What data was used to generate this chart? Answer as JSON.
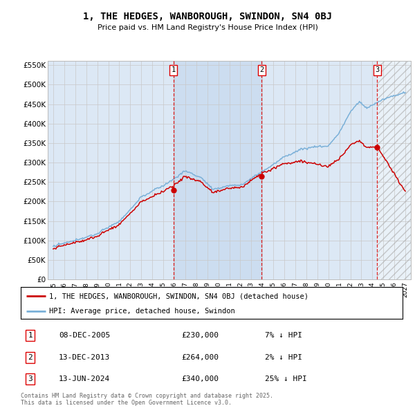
{
  "title": "1, THE HEDGES, WANBOROUGH, SWINDON, SN4 0BJ",
  "subtitle": "Price paid vs. HM Land Registry's House Price Index (HPI)",
  "background_color": "#ffffff",
  "grid_color": "#c8c8c8",
  "plot_bg_color": "#dce8f5",
  "shaded_region_color": "#ccddf0",
  "line_color_property": "#cc0000",
  "line_color_hpi": "#7ab0d8",
  "transactions": [
    {
      "num": 1,
      "date": "08-DEC-2005",
      "price": 230000,
      "hpi_diff": "7% ↓ HPI",
      "x_year": 2005.92
    },
    {
      "num": 2,
      "date": "13-DEC-2013",
      "price": 264000,
      "hpi_diff": "2% ↓ HPI",
      "x_year": 2013.95
    },
    {
      "num": 3,
      "date": "13-JUN-2024",
      "price": 340000,
      "hpi_diff": "25% ↓ HPI",
      "x_year": 2024.45
    }
  ],
  "legend_property": "1, THE HEDGES, WANBOROUGH, SWINDON, SN4 0BJ (detached house)",
  "legend_hpi": "HPI: Average price, detached house, Swindon",
  "footer": "Contains HM Land Registry data © Crown copyright and database right 2025.\nThis data is licensed under the Open Government Licence v3.0.",
  "ylim": [
    0,
    560000
  ],
  "xlim_start": 1994.5,
  "xlim_end": 2027.5,
  "hatch_start": 2024.45,
  "yticks": [
    0,
    50000,
    100000,
    150000,
    200000,
    250000,
    300000,
    350000,
    400000,
    450000,
    500000,
    550000
  ],
  "xticks": [
    1995,
    1996,
    1997,
    1998,
    1999,
    2000,
    2001,
    2002,
    2003,
    2004,
    2005,
    2006,
    2007,
    2008,
    2009,
    2010,
    2011,
    2012,
    2013,
    2014,
    2015,
    2016,
    2017,
    2018,
    2019,
    2020,
    2021,
    2022,
    2023,
    2024,
    2025,
    2026,
    2027
  ]
}
